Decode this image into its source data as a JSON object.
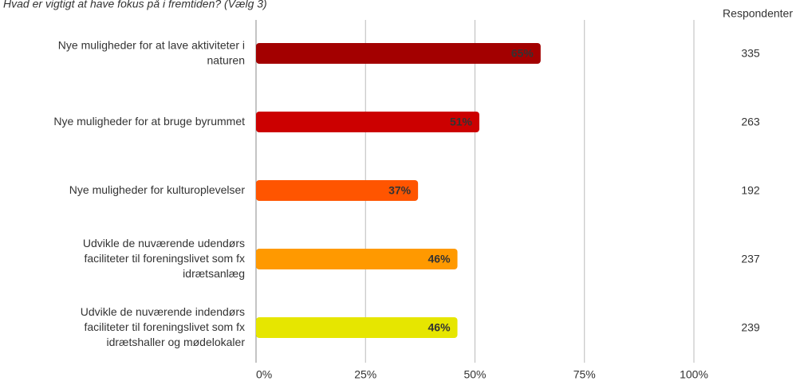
{
  "chart_data": {
    "type": "bar",
    "orientation": "horizontal",
    "title": "Hvad er vigtigt at have fokus på i fremtiden? (Vælg 3)",
    "categories": [
      "Nye muligheder for at lave aktiviteter i\nnaturen",
      "Nye muligheder for at bruge byrummet",
      "Nye muligheder for kulturoplevelser",
      "Udvikle de nuværende udendørs\nfaciliteter til foreningslivet som fx\nidrætsanlæg",
      "Udvikle de nuværende indendørs\nfaciliteter til foreningslivet som fx\nidrætshaller og mødelokaler"
    ],
    "values": [
      65,
      51,
      37,
      46,
      46
    ],
    "value_labels": [
      "65%",
      "51%",
      "37%",
      "46%",
      "46%"
    ],
    "colors": [
      "#a30000",
      "#cc0000",
      "#ff5500",
      "#ff9900",
      "#e6e600"
    ],
    "label_colors": [
      "#ffffff",
      "#ffffff",
      "#ffffff",
      "#333333",
      "#333333"
    ],
    "xlim": [
      0,
      100
    ],
    "xticks": [
      {
        "value": 0,
        "label": "0%"
      },
      {
        "value": 25,
        "label": "25%"
      },
      {
        "value": 50,
        "label": "50%"
      },
      {
        "value": 75,
        "label": "75%"
      },
      {
        "value": 100,
        "label": "100%"
      }
    ],
    "grid": true,
    "respondents": {
      "label": "Respondenter",
      "values": [
        335,
        263,
        192,
        237,
        239
      ]
    }
  }
}
